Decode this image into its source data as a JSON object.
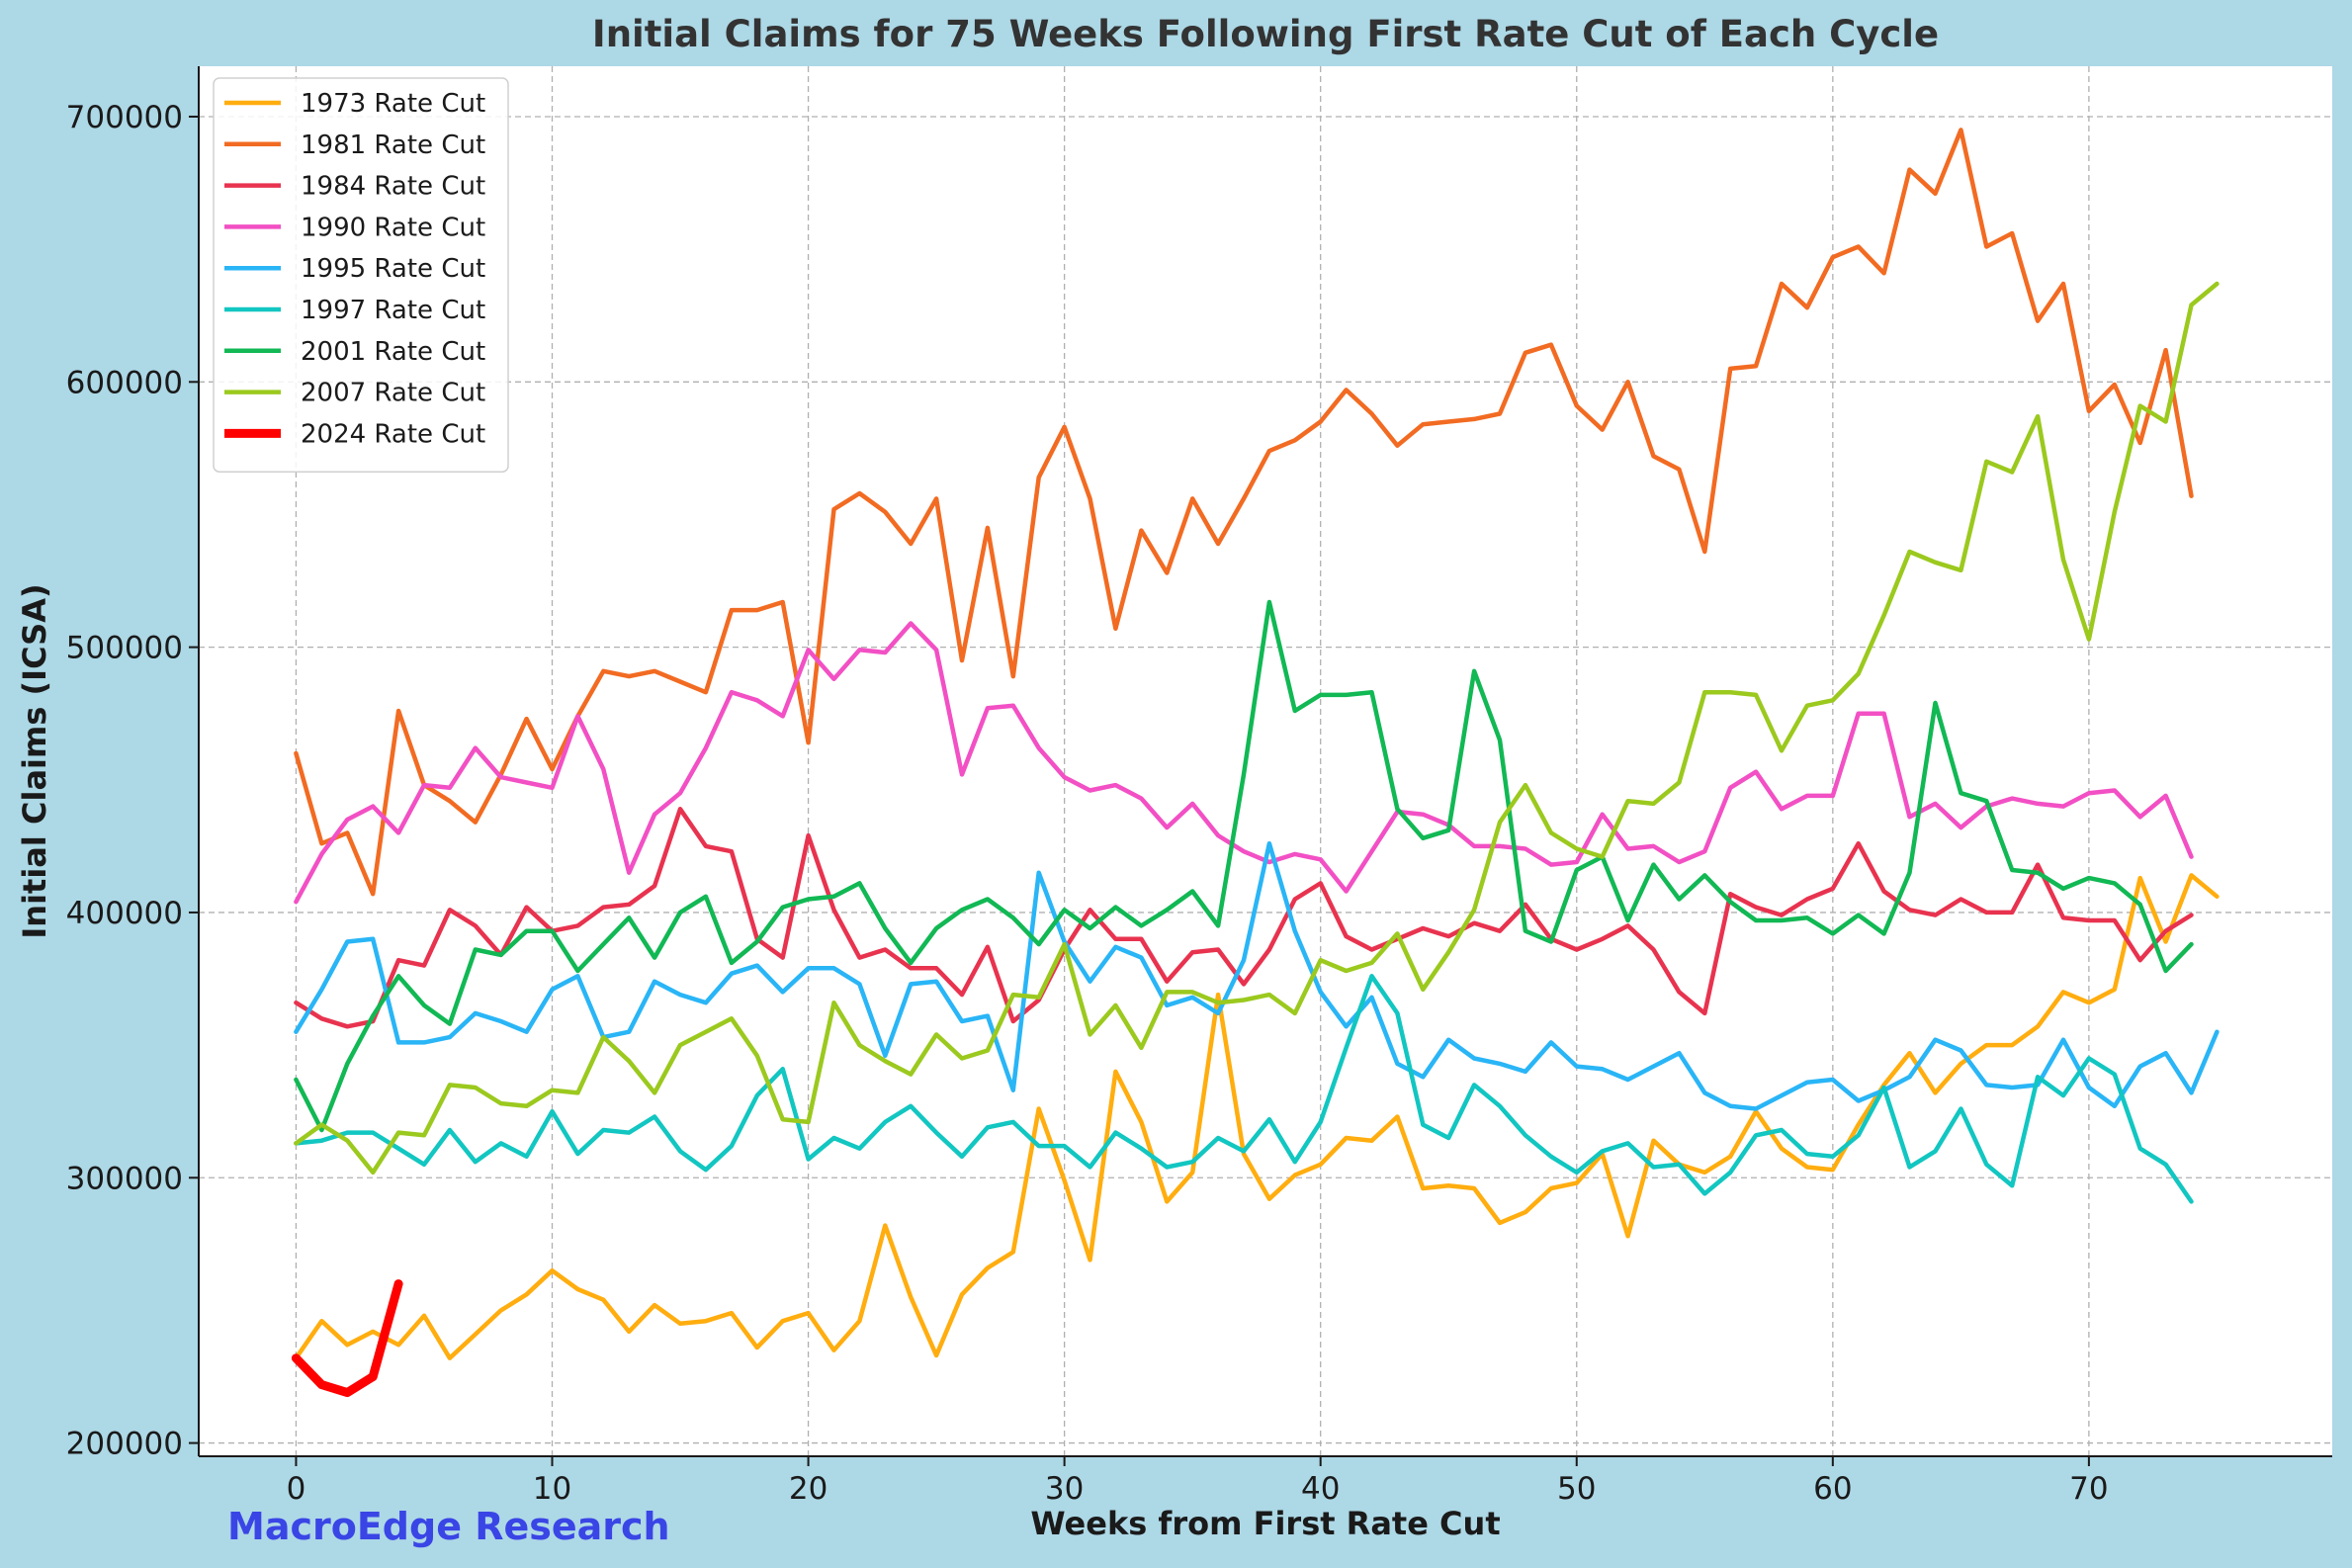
{
  "chart_data": {
    "type": "line",
    "title": "Initial Claims for 75 Weeks Following First Rate Cut of Each Cycle",
    "xlabel": "Weeks from First Rate Cut",
    "ylabel": "Initial Claims (ICSA)",
    "xlim": [
      -3.8,
      79.5
    ],
    "ylim": [
      195000,
      719000
    ],
    "xticks": [
      0,
      10,
      20,
      30,
      40,
      50,
      60,
      70
    ],
    "xtick_labels": [
      "0",
      "10",
      "20",
      "30",
      "40",
      "50",
      "60",
      "70"
    ],
    "yticks": [
      200000,
      300000,
      400000,
      500000,
      600000,
      700000
    ],
    "ytick_labels": [
      "200000",
      "300000",
      "400000",
      "500000",
      "600000",
      "700000"
    ],
    "grid": true,
    "legend_position": "top-left",
    "watermark": "MacroEdge Research",
    "series": [
      {
        "name": "1973 Rate Cut",
        "color": "#ffad0f",
        "width": 4.5,
        "start": 0,
        "values": [
          232000,
          246000,
          237000,
          242000,
          237000,
          248000,
          232000,
          241000,
          250000,
          256000,
          265000,
          258000,
          254000,
          242000,
          252000,
          245000,
          246000,
          249000,
          236000,
          246000,
          249000,
          235000,
          246000,
          282000,
          255000,
          233000,
          256000,
          266000,
          272000,
          326000,
          299000,
          269000,
          340000,
          321000,
          291000,
          302000,
          369000,
          309000,
          292000,
          301000,
          305000,
          315000,
          314000,
          323000,
          296000,
          297000,
          296000,
          283000,
          287000,
          296000,
          298000,
          309000,
          278000,
          314000,
          305000,
          302000,
          308000,
          325000,
          311000,
          304000,
          303000,
          320000,
          335000,
          347000,
          332000,
          343000,
          350000,
          350000,
          357000,
          370000,
          366000,
          371000,
          413000,
          389000,
          414000,
          406000
        ]
      },
      {
        "name": "1981 Rate Cut",
        "color": "#f26b22",
        "width": 4.5,
        "start": 0,
        "values": [
          460000,
          426000,
          430000,
          407000,
          476000,
          448000,
          442000,
          434000,
          452000,
          473000,
          454000,
          474000,
          491000,
          489000,
          491000,
          487000,
          483000,
          514000,
          514000,
          517000,
          464000,
          552000,
          558000,
          551000,
          539000,
          556000,
          495000,
          545000,
          489000,
          564000,
          583000,
          556000,
          507000,
          544000,
          528000,
          556000,
          539000,
          556000,
          574000,
          578000,
          585000,
          597000,
          588000,
          576000,
          584000,
          585000,
          586000,
          588000,
          611000,
          614000,
          591000,
          582000,
          600000,
          572000,
          567000,
          536000,
          605000,
          606000,
          637000,
          628000,
          647000,
          651000,
          641000,
          680000,
          671000,
          695000,
          651000,
          656000,
          623000,
          637000,
          589000,
          599000,
          577000,
          612000,
          557000
        ]
      },
      {
        "name": "1984 Rate Cut",
        "color": "#e8334f",
        "width": 4.5,
        "start": 0,
        "values": [
          366000,
          360000,
          357000,
          359000,
          382000,
          380000,
          401000,
          395000,
          384000,
          402000,
          393000,
          395000,
          402000,
          403000,
          410000,
          439000,
          425000,
          423000,
          390000,
          383000,
          429000,
          401000,
          383000,
          386000,
          379000,
          379000,
          369000,
          387000,
          359000,
          367000,
          386000,
          401000,
          390000,
          390000,
          374000,
          385000,
          386000,
          373000,
          386000,
          405000,
          411000,
          391000,
          386000,
          390000,
          394000,
          391000,
          396000,
          393000,
          403000,
          390000,
          386000,
          390000,
          395000,
          386000,
          370000,
          362000,
          407000,
          402000,
          399000,
          405000,
          409000,
          426000,
          408000,
          401000,
          399000,
          405000,
          400000,
          400000,
          418000,
          398000,
          397000,
          397000,
          382000,
          393000,
          399000
        ]
      },
      {
        "name": "1990 Rate Cut",
        "color": "#f250c4",
        "width": 4.5,
        "start": 0,
        "values": [
          404000,
          422000,
          435000,
          440000,
          430000,
          448000,
          447000,
          462000,
          451000,
          449000,
          447000,
          474000,
          454000,
          415000,
          437000,
          445000,
          462000,
          483000,
          480000,
          474000,
          499000,
          488000,
          499000,
          498000,
          509000,
          499000,
          452000,
          477000,
          478000,
          462000,
          451000,
          446000,
          448000,
          443000,
          432000,
          441000,
          429000,
          423000,
          419000,
          422000,
          420000,
          408000,
          423000,
          438000,
          437000,
          433000,
          425000,
          425000,
          424000,
          418000,
          419000,
          437000,
          424000,
          425000,
          419000,
          423000,
          447000,
          453000,
          439000,
          444000,
          444000,
          475000,
          475000,
          436000,
          441000,
          432000,
          440000,
          443000,
          441000,
          440000,
          445000,
          446000,
          436000,
          444000,
          421000
        ]
      },
      {
        "name": "1995 Rate Cut",
        "color": "#29b5f6",
        "width": 4.5,
        "start": 0,
        "values": [
          355000,
          371000,
          389000,
          390000,
          351000,
          351000,
          353000,
          362000,
          359000,
          355000,
          371000,
          376000,
          353000,
          355000,
          374000,
          369000,
          366000,
          377000,
          380000,
          370000,
          379000,
          379000,
          373000,
          346000,
          373000,
          374000,
          359000,
          361000,
          333000,
          415000,
          389000,
          374000,
          387000,
          383000,
          365000,
          368000,
          362000,
          382000,
          426000,
          393000,
          370000,
          357000,
          368000,
          343000,
          338000,
          352000,
          345000,
          343000,
          340000,
          351000,
          342000,
          341000,
          337000,
          342000,
          347000,
          332000,
          327000,
          326000,
          331000,
          336000,
          337000,
          329000,
          333000,
          338000,
          352000,
          348000,
          335000,
          334000,
          335000,
          352000,
          334000,
          327000,
          342000,
          347000,
          332000,
          355000
        ]
      },
      {
        "name": "1997 Rate Cut",
        "color": "#12c6c1",
        "width": 4.5,
        "start": 0,
        "values": [
          313000,
          314000,
          317000,
          317000,
          311000,
          305000,
          318000,
          306000,
          313000,
          308000,
          325000,
          309000,
          318000,
          317000,
          323000,
          310000,
          303000,
          312000,
          331000,
          341000,
          307000,
          315000,
          311000,
          321000,
          327000,
          317000,
          308000,
          319000,
          321000,
          312000,
          312000,
          304000,
          317000,
          311000,
          304000,
          306000,
          315000,
          310000,
          322000,
          306000,
          321000,
          349000,
          376000,
          362000,
          320000,
          315000,
          335000,
          327000,
          316000,
          308000,
          302000,
          310000,
          313000,
          304000,
          305000,
          294000,
          302000,
          316000,
          318000,
          309000,
          308000,
          316000,
          334000,
          304000,
          310000,
          326000,
          305000,
          297000,
          338000,
          331000,
          345000,
          339000,
          311000,
          305000,
          291000
        ]
      },
      {
        "name": "2001 Rate Cut",
        "color": "#11b854",
        "width": 4.5,
        "start": 0,
        "values": [
          337000,
          318000,
          343000,
          361000,
          376000,
          365000,
          358000,
          386000,
          384000,
          393000,
          393000,
          378000,
          388000,
          398000,
          383000,
          400000,
          406000,
          381000,
          389000,
          402000,
          405000,
          406000,
          411000,
          394000,
          381000,
          394000,
          401000,
          405000,
          398000,
          388000,
          401000,
          394000,
          402000,
          395000,
          401000,
          408000,
          395000,
          452000,
          517000,
          476000,
          482000,
          482000,
          483000,
          439000,
          428000,
          431000,
          491000,
          465000,
          393000,
          389000,
          416000,
          421000,
          397000,
          418000,
          405000,
          414000,
          404000,
          397000,
          397000,
          398000,
          392000,
          399000,
          392000,
          415000,
          479000,
          445000,
          442000,
          416000,
          415000,
          409000,
          413000,
          411000,
          403000,
          378000,
          388000
        ]
      },
      {
        "name": "2007 Rate Cut",
        "color": "#9bc91e",
        "width": 4.5,
        "start": 0,
        "values": [
          313000,
          320000,
          314000,
          302000,
          317000,
          316000,
          335000,
          334000,
          328000,
          327000,
          333000,
          332000,
          353000,
          344000,
          332000,
          350000,
          355000,
          360000,
          346000,
          322000,
          321000,
          366000,
          350000,
          344000,
          339000,
          354000,
          345000,
          348000,
          369000,
          368000,
          388000,
          354000,
          365000,
          349000,
          370000,
          370000,
          366000,
          367000,
          369000,
          362000,
          382000,
          378000,
          381000,
          392000,
          371000,
          385000,
          401000,
          434000,
          448000,
          430000,
          424000,
          421000,
          442000,
          441000,
          449000,
          483000,
          483000,
          482000,
          461000,
          478000,
          480000,
          490000,
          512000,
          536000,
          532000,
          529000,
          570000,
          566000,
          587000,
          533000,
          503000,
          551000,
          591000,
          585000,
          629000,
          637000
        ]
      },
      {
        "name": "2024 Rate Cut",
        "color": "#ff0000",
        "width": 9,
        "start": 0,
        "values": [
          232000,
          222000,
          219000,
          225000,
          260000
        ]
      }
    ]
  }
}
